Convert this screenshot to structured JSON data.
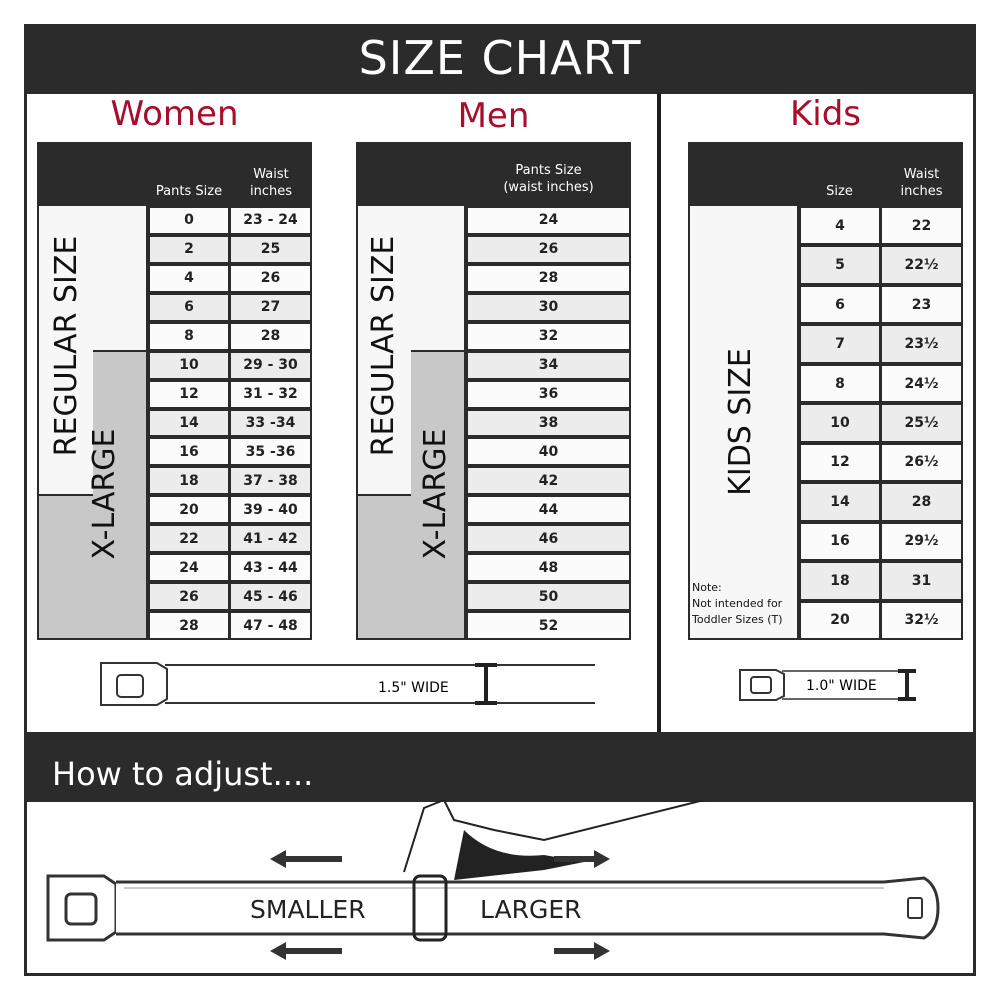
{
  "title": "SIZE CHART",
  "women": {
    "title": "Women",
    "col_pants": "Pants Size",
    "col_waist": "Waist\ninches",
    "regular_label": "REGULAR SIZE",
    "xlarge_label": "X-LARGE",
    "rows": [
      [
        "0",
        "23 - 24"
      ],
      [
        "2",
        "25"
      ],
      [
        "4",
        "26"
      ],
      [
        "6",
        "27"
      ],
      [
        "8",
        "28"
      ],
      [
        "10",
        "29 - 30"
      ],
      [
        "12",
        "31 - 32"
      ],
      [
        "14",
        "33 -34"
      ],
      [
        "16",
        "35 -36"
      ],
      [
        "18",
        "37 - 38"
      ],
      [
        "20",
        "39 - 40"
      ],
      [
        "22",
        "41 - 42"
      ],
      [
        "24",
        "43 - 44"
      ],
      [
        "26",
        "45 - 46"
      ],
      [
        "28",
        "47 - 48"
      ]
    ],
    "width_label": "1.5\" WIDE"
  },
  "men": {
    "title": "Men",
    "col_pants": "Pants Size\n(waist inches)",
    "regular_label": "REGULAR SIZE",
    "xlarge_label": "X-LARGE",
    "rows": [
      "24",
      "26",
      "28",
      "30",
      "32",
      "34",
      "36",
      "38",
      "40",
      "42",
      "44",
      "46",
      "48",
      "50",
      "52"
    ]
  },
  "kids": {
    "title": "Kids",
    "col_size": "Size",
    "col_waist": "Waist\ninches",
    "label": "KIDS SIZE",
    "note": "Note:\nNot intended for\nToddler Sizes (T)",
    "rows": [
      [
        "4",
        "22"
      ],
      [
        "5",
        "22½"
      ],
      [
        "6",
        "23"
      ],
      [
        "7",
        "23½"
      ],
      [
        "8",
        "24½"
      ],
      [
        "10",
        "25½"
      ],
      [
        "12",
        "26½"
      ],
      [
        "14",
        "28"
      ],
      [
        "16",
        "29½"
      ],
      [
        "18",
        "31"
      ],
      [
        "20",
        "32½"
      ]
    ],
    "width_label": "1.0\" WIDE"
  },
  "adjust": {
    "title": "How to adjust....",
    "smaller": "SMALLER",
    "larger": "LARGER"
  },
  "colors": {
    "accent": "#a50f2d",
    "dark": "#2b2b2b",
    "xlarge_fill": "#c8c8c8",
    "row_alt": "#ececec"
  }
}
